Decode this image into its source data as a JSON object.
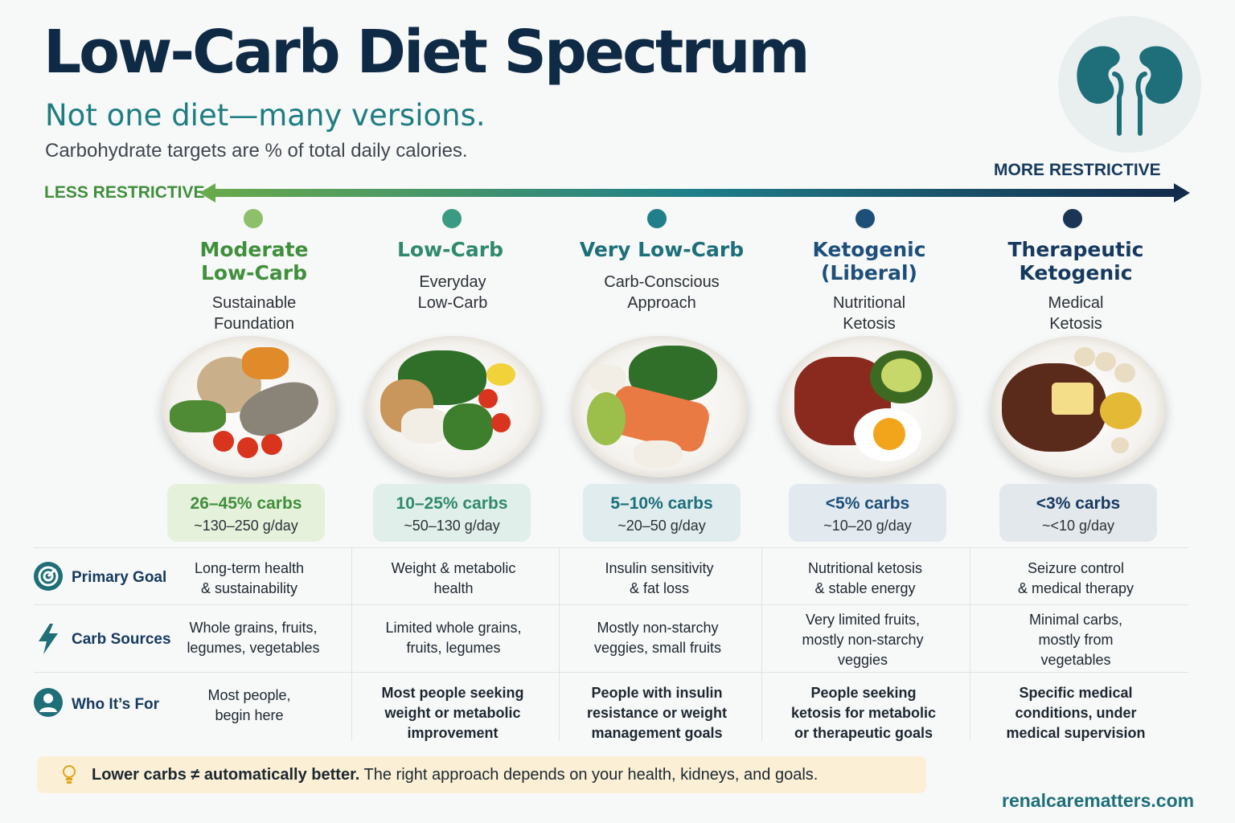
{
  "header": {
    "title": "Low-Carb Diet Spectrum",
    "subtitle": "Not one diet—many versions.",
    "note": "Carbohydrate targets are % of total daily calories."
  },
  "spectrum": {
    "less_label": "LESS RESTRICTIVE",
    "more_label": "MORE RESTRICTIVE",
    "start_color": "#6aaa4a",
    "end_color": "#13294a"
  },
  "columns": [
    {
      "name_line1": "Moderate",
      "name_line2": "Low-Carb",
      "sub_line1": "Sustainable",
      "sub_line2": "Foundation",
      "carbs": "26–45% carbs",
      "grams": "~130–250 g/day",
      "primary_goal": [
        "Long-term health",
        "& sustainability"
      ],
      "carb_sources": [
        "Whole grains, fruits,",
        "legumes, vegetables"
      ],
      "who_for": [
        "Most people,",
        "begin here"
      ],
      "color": "#3f8f3b",
      "dot_color": "#8cc06a",
      "box_color": "#e6f1dc"
    },
    {
      "name_line1": "Low-Carb",
      "name_line2": "",
      "sub_line1": "Everyday",
      "sub_line2": "Low-Carb",
      "carbs": "10–25% carbs",
      "grams": "~50–130 g/day",
      "primary_goal": [
        "Weight & metabolic",
        "health"
      ],
      "carb_sources": [
        "Limited whole grains,",
        "fruits, legumes"
      ],
      "who_for": [
        "Most people seeking",
        "weight or metabolic",
        "improvement"
      ],
      "color": "#2f8a6d",
      "dot_color": "#3b9a82",
      "box_color": "#e1efea"
    },
    {
      "name_line1": "Very Low-Carb",
      "name_line2": "",
      "sub_line1": "Carb-Conscious",
      "sub_line2": "Approach",
      "carbs": "5–10% carbs",
      "grams": "~20–50 g/day",
      "primary_goal": [
        "Insulin sensitivity",
        "& fat loss"
      ],
      "carb_sources": [
        "Mostly non-starchy",
        "veggies, small fruits"
      ],
      "who_for": [
        "People with insulin",
        "resistance or weight",
        "management goals"
      ],
      "color": "#1d6f7a",
      "dot_color": "#1f7f8a",
      "box_color": "#e0ecee"
    },
    {
      "name_line1": "Ketogenic",
      "name_line2": "(Liberal)",
      "sub_line1": "Nutritional",
      "sub_line2": "Ketosis",
      "carbs": "<5% carbs",
      "grams": "~10–20 g/day",
      "primary_goal": [
        "Nutritional ketosis",
        "& stable energy"
      ],
      "carb_sources": [
        "Very limited fruits,",
        "mostly non-starchy",
        "veggies"
      ],
      "who_for": [
        "People seeking",
        "ketosis for metabolic",
        "or therapeutic goals"
      ],
      "color": "#1e4f7a",
      "dot_color": "#1e4f78",
      "box_color": "#e2e9ef"
    },
    {
      "name_line1": "Therapeutic",
      "name_line2": "Ketogenic",
      "sub_line1": "Medical",
      "sub_line2": "Ketosis",
      "carbs": "<3% carbs",
      "grams": "~<10 g/day",
      "primary_goal": [
        "Seizure control",
        "& medical therapy"
      ],
      "carb_sources": [
        "Minimal carbs,",
        "mostly from",
        "vegetables"
      ],
      "who_for": [
        "Specific medical",
        "conditions, under",
        "medical supervision"
      ],
      "color": "#163a5e",
      "dot_color": "#1a3556",
      "box_color": "#e3e8ed"
    }
  ],
  "rows": {
    "primary_goal": "Primary Goal",
    "carb_sources": "Carb Sources",
    "who_for": "Who It’s For"
  },
  "icons": {
    "primary_goal": "target-icon",
    "carb_sources": "lightning-icon",
    "who_for": "person-icon",
    "badge": "kidneys-icon",
    "tip": "lightbulb-icon"
  },
  "footer": {
    "tip_bold": "Lower carbs ≠ automatically better.",
    "tip_rest": " The right approach depends on your health, kidneys, and goals.",
    "site": "renalcarematters.com"
  }
}
